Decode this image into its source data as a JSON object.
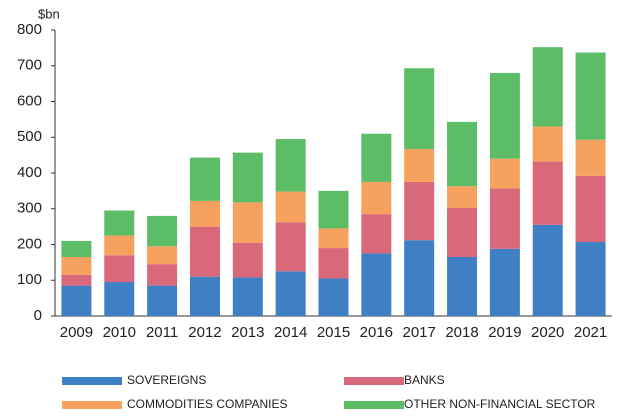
{
  "chart_data": {
    "type": "stacked_bar",
    "y_unit_label": "$bn",
    "categories": [
      "2009",
      "2010",
      "2011",
      "2012",
      "2013",
      "2014",
      "2015",
      "2016",
      "2017",
      "2018",
      "2019",
      "2020",
      "2021"
    ],
    "series": [
      {
        "name": "SOVEREIGNS",
        "color": "#3f7fc4",
        "values": [
          85,
          95,
          85,
          110,
          108,
          125,
          105,
          175,
          212,
          165,
          188,
          255,
          207
        ]
      },
      {
        "name": "BANKS",
        "color": "#d9697a",
        "values": [
          30,
          75,
          60,
          140,
          97,
          137,
          85,
          110,
          163,
          137,
          169,
          177,
          185
        ]
      },
      {
        "name": "COMMODITIES COMPANIES",
        "color": "#f6a15e",
        "values": [
          50,
          55,
          50,
          72,
          113,
          86,
          55,
          90,
          92,
          61,
          83,
          98,
          101
        ]
      },
      {
        "name": "OTHER NON-FINANCIAL SECTOR",
        "color": "#5cbd66",
        "values": [
          45,
          70,
          85,
          121,
          139,
          147,
          105,
          135,
          226,
          180,
          240,
          222,
          244
        ]
      }
    ],
    "ylim": [
      0,
      800
    ],
    "yticks": [
      0,
      100,
      200,
      300,
      400,
      500,
      600,
      700,
      800
    ],
    "grid": false
  }
}
